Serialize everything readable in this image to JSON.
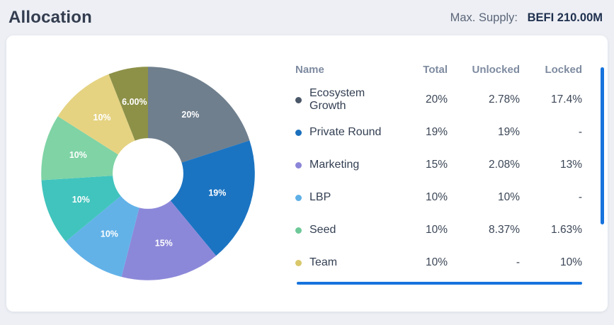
{
  "header": {
    "title": "Allocation",
    "max_supply_label": "Max. Supply:",
    "max_supply_value": "BEFI 210.00M"
  },
  "table": {
    "headers": [
      "Name",
      "Total",
      "Unlocked",
      "Locked"
    ],
    "rows": [
      {
        "name": "Ecosystem Growth",
        "color": "#4a5768",
        "total": "20%",
        "unlocked": "2.78%",
        "locked": "17.4%"
      },
      {
        "name": "Private Round",
        "color": "#1a70bd",
        "total": "19%",
        "unlocked": "19%",
        "locked": "-"
      },
      {
        "name": "Marketing",
        "color": "#8b86d8",
        "total": "15%",
        "unlocked": "2.08%",
        "locked": "13%"
      },
      {
        "name": "LBP",
        "color": "#5fb0e6",
        "total": "10%",
        "unlocked": "10%",
        "locked": "-"
      },
      {
        "name": "Seed",
        "color": "#6ec998",
        "total": "10%",
        "unlocked": "8.37%",
        "locked": "1.63%"
      },
      {
        "name": "Team",
        "color": "#d9c76a",
        "total": "10%",
        "unlocked": "-",
        "locked": "10%"
      }
    ]
  },
  "chart_data": {
    "type": "pie",
    "title": "Allocation",
    "donut": true,
    "inner_radius_ratio": 0.33,
    "start_at_top": true,
    "clockwise": true,
    "values": [
      20,
      19,
      15,
      10,
      10,
      10,
      10,
      6
    ],
    "slice_labels": [
      "20%",
      "19%",
      "15%",
      "10%",
      "10%",
      "10%",
      "10%",
      "6.00%"
    ],
    "segment_names": [
      "Ecosystem Growth",
      "Private Round",
      "Marketing",
      "LBP",
      "",
      "Seed",
      "Team",
      ""
    ],
    "colors": [
      "#6f7f8e",
      "#1b74c2",
      "#8c88d9",
      "#62b2e8",
      "#41c4bd",
      "#7fd3a5",
      "#e5d382",
      "#8d9148"
    ],
    "legend_position": "right-table"
  },
  "ui": {
    "scrollbar_color": "#1673dd",
    "background_color": "#edeff4",
    "card_color": "#ffffff"
  }
}
